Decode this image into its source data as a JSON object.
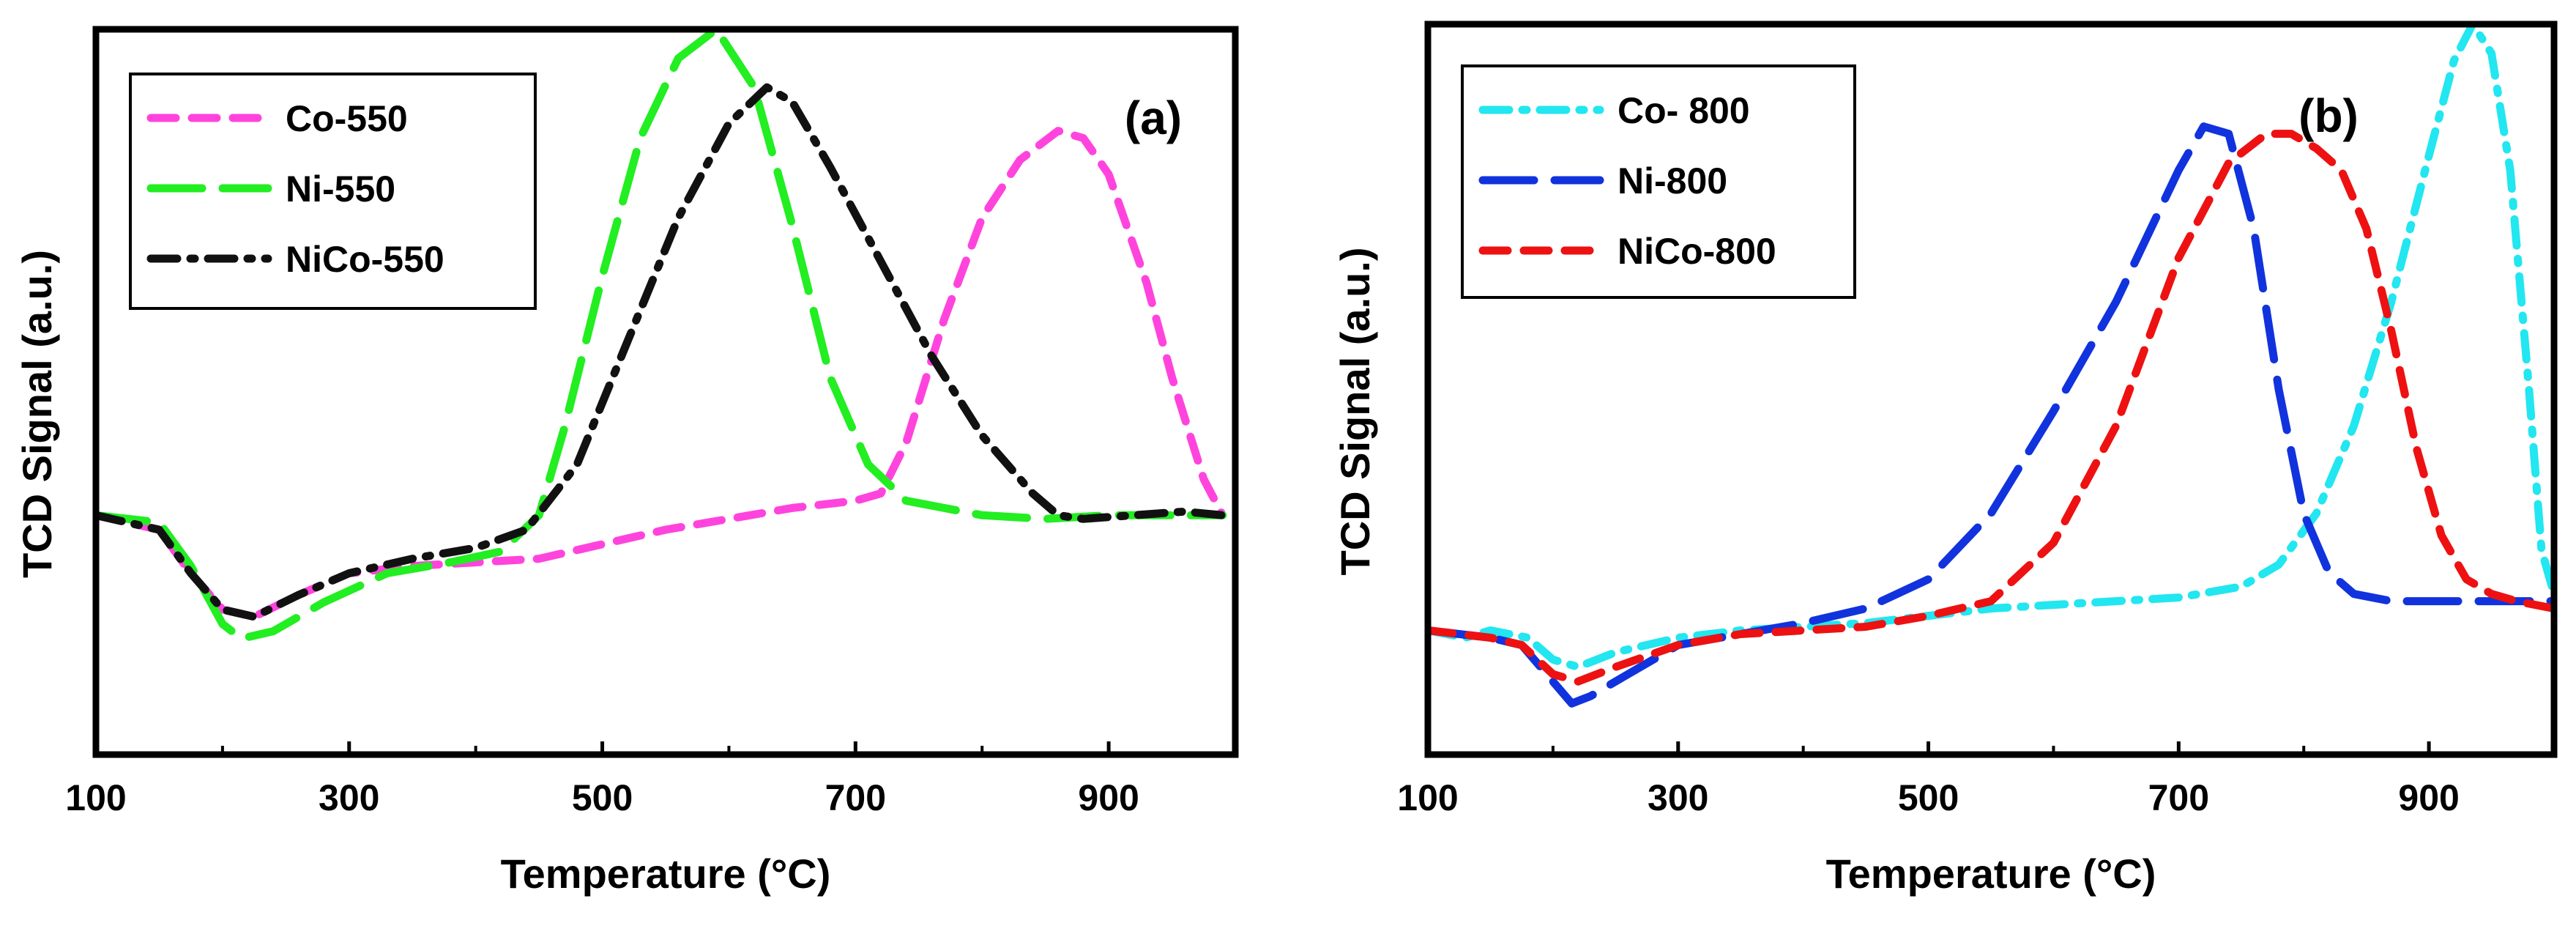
{
  "chart_data": [
    {
      "type": "line",
      "panel_label": "(a)",
      "xlabel": "Temperature (°C)",
      "ylabel": "TCD Signal (a.u.)",
      "xlim": [
        100,
        1000
      ],
      "ylim": [
        0,
        100
      ],
      "xticks": [
        100,
        300,
        500,
        700,
        900
      ],
      "xtick_labels": [
        "100",
        "300",
        "500",
        "700",
        "900"
      ],
      "y_tick_labels_shown": false,
      "legend_position": "top-left",
      "series": [
        {
          "name": "Co-550",
          "color": "#ff44dd",
          "dash": "dash",
          "x": [
            100,
            150,
            175,
            200,
            225,
            260,
            300,
            350,
            400,
            450,
            500,
            550,
            600,
            650,
            700,
            720,
            740,
            770,
            800,
            830,
            860,
            880,
            900,
            930,
            950,
            975,
            990
          ],
          "y": [
            33,
            31,
            25,
            20,
            19,
            22,
            25,
            26,
            26.5,
            27,
            29,
            31,
            32.5,
            34,
            35,
            36,
            43,
            60,
            74,
            82,
            86,
            85,
            80,
            65,
            52,
            38,
            33
          ]
        },
        {
          "name": "Ni-550",
          "color": "#22ee22",
          "dash": "long-dash",
          "x": [
            100,
            150,
            175,
            200,
            215,
            240,
            280,
            330,
            380,
            420,
            450,
            470,
            500,
            530,
            560,
            590,
            620,
            650,
            680,
            710,
            740,
            770,
            800,
            850,
            900,
            950,
            990
          ],
          "y": [
            33,
            32,
            26,
            18,
            16,
            17,
            21,
            25,
            26.5,
            28,
            33,
            45,
            66,
            85,
            96,
            100,
            92,
            73,
            52,
            40,
            35,
            34,
            33,
            32.5,
            33,
            33,
            33
          ]
        },
        {
          "name": "NiCo-550",
          "color": "#111111",
          "dash": "dash-dot",
          "x": [
            100,
            150,
            175,
            200,
            225,
            260,
            300,
            350,
            400,
            440,
            480,
            520,
            560,
            600,
            630,
            650,
            680,
            720,
            760,
            800,
            840,
            860,
            880,
            920,
            960,
            990
          ],
          "y": [
            33,
            31,
            25,
            20,
            19,
            22,
            25,
            27,
            28.5,
            31,
            40,
            57,
            74,
            87,
            92,
            90,
            81,
            68,
            55,
            44,
            36,
            33,
            32.5,
            33,
            33.5,
            33
          ]
        }
      ]
    },
    {
      "type": "line",
      "panel_label": "(b)",
      "xlabel": "Temperature (°C)",
      "ylabel": "TCD Signal (a.u.)",
      "xlim": [
        100,
        1000
      ],
      "ylim": [
        0,
        100
      ],
      "xticks": [
        100,
        300,
        500,
        700,
        900
      ],
      "xtick_labels": [
        "100",
        "300",
        "500",
        "700",
        "900"
      ],
      "y_tick_labels_shown": false,
      "legend_position": "top-left",
      "series": [
        {
          "name": "Co- 800",
          "color": "#22e6f0",
          "dash": "dash-dot",
          "x": [
            100,
            130,
            150,
            180,
            200,
            220,
            250,
            300,
            350,
            400,
            450,
            500,
            550,
            600,
            650,
            700,
            750,
            780,
            810,
            840,
            870,
            900,
            920,
            935,
            950,
            965,
            980,
            990,
            1000
          ],
          "y": [
            17,
            16,
            17,
            16,
            13,
            12,
            14,
            16,
            17,
            17.5,
            18,
            19,
            20,
            20.5,
            21,
            21.5,
            23,
            26,
            33,
            45,
            62,
            82,
            95,
            100,
            96,
            80,
            50,
            28,
            22
          ]
        },
        {
          "name": "Ni-800",
          "color": "#1133dd",
          "dash": "long-dash",
          "x": [
            100,
            150,
            175,
            200,
            215,
            230,
            260,
            300,
            350,
            400,
            450,
            500,
            550,
            600,
            650,
            700,
            720,
            740,
            760,
            780,
            800,
            820,
            840,
            870,
            900,
            950,
            1000
          ],
          "y": [
            17,
            16,
            15,
            10,
            7,
            8,
            11,
            15,
            16.5,
            18,
            20,
            24,
            33,
            47,
            62,
            80,
            86,
            85,
            72,
            50,
            33,
            25,
            22,
            21,
            21,
            21,
            21
          ]
        },
        {
          "name": "NiCo-800",
          "color": "#ee1111",
          "dash": "dash",
          "x": [
            100,
            150,
            175,
            200,
            220,
            250,
            300,
            350,
            400,
            450,
            500,
            550,
            600,
            650,
            700,
            740,
            770,
            790,
            810,
            830,
            850,
            870,
            890,
            910,
            930,
            950,
            970,
            1000
          ],
          "y": [
            17,
            16,
            15,
            11,
            10,
            12,
            15,
            16.5,
            17,
            17.5,
            19,
            21,
            29,
            45,
            68,
            81,
            85,
            85,
            83,
            80,
            72,
            58,
            42,
            30,
            24,
            22,
            21,
            20
          ]
        }
      ]
    }
  ]
}
